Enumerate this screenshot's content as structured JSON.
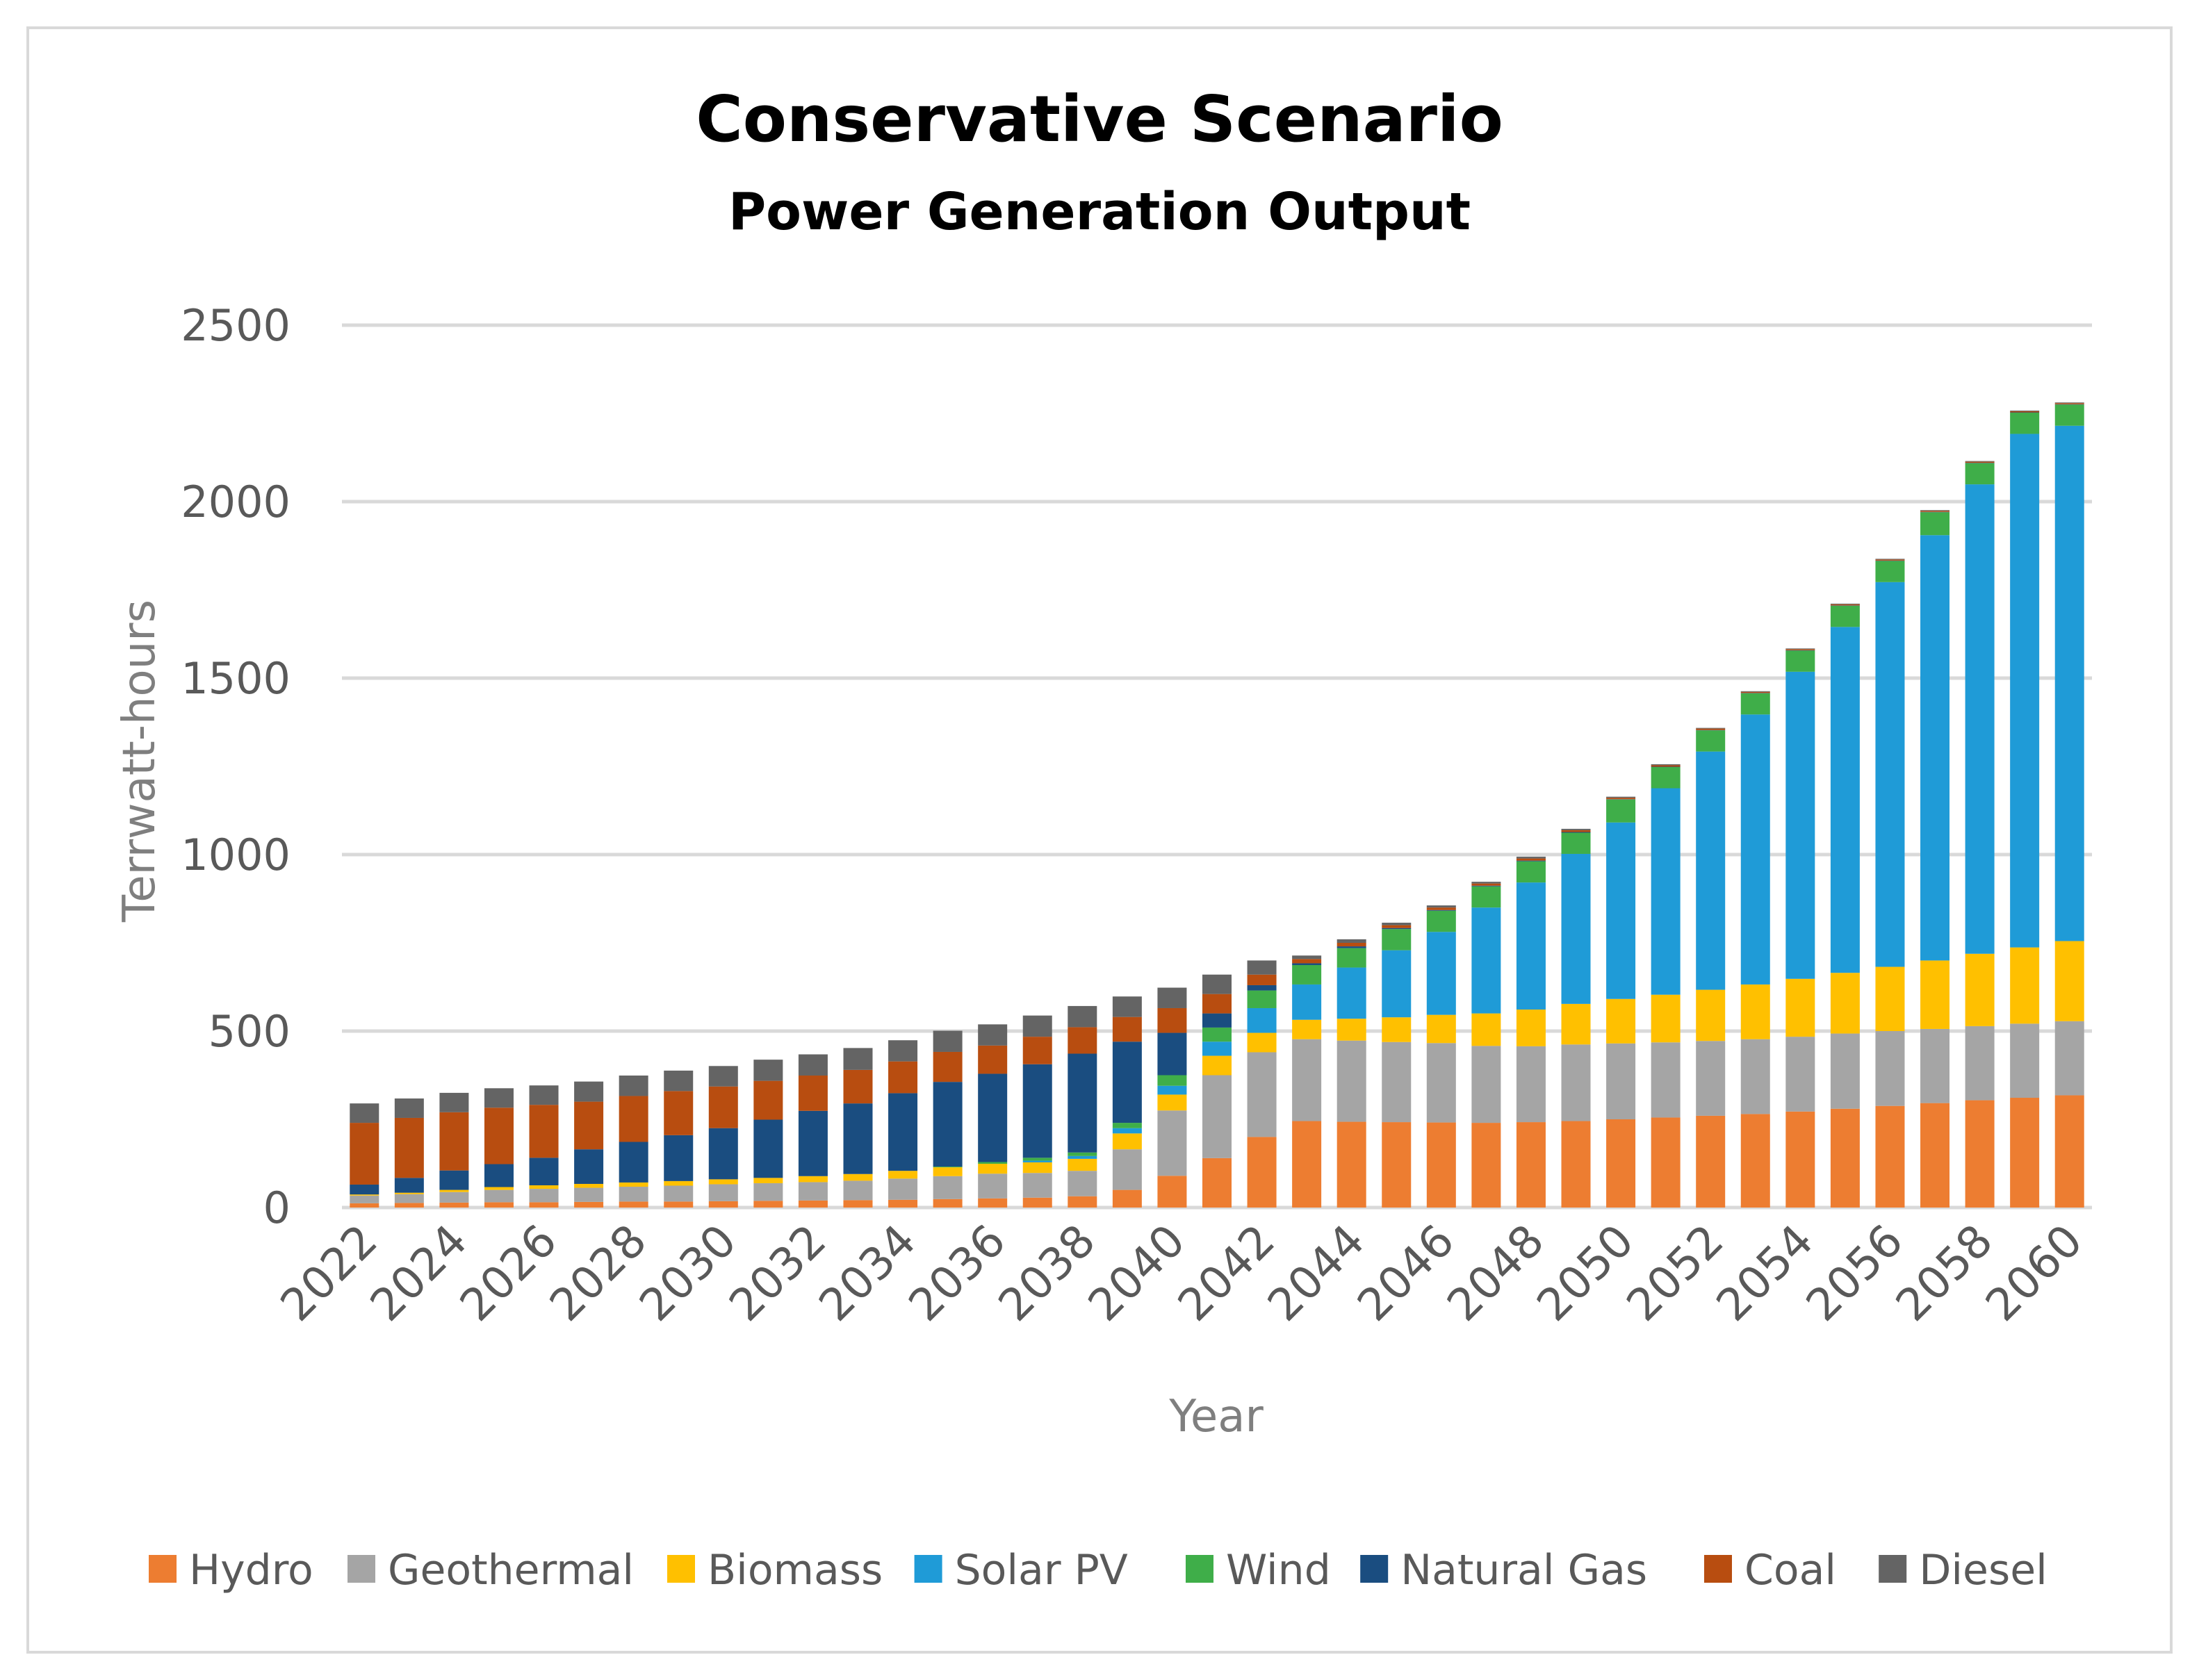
{
  "chart_data": {
    "type": "bar",
    "stacked": true,
    "title": "Conservative Scenario",
    "subtitle": "Power Generation Output",
    "xlabel": "Year",
    "ylabel": "Terrwatt-hours",
    "ylim": [
      0,
      2500
    ],
    "yticks": [
      0,
      500,
      1000,
      1500,
      2000,
      2500
    ],
    "grid": true,
    "legend_position": "bottom",
    "categories": [
      "2022",
      "2023",
      "2024",
      "2025",
      "2026",
      "2027",
      "2028",
      "2029",
      "2030",
      "2031",
      "2032",
      "2033",
      "2034",
      "2035",
      "2036",
      "2037",
      "2038",
      "2039",
      "2040",
      "2041",
      "2042",
      "2043",
      "2044",
      "2045",
      "2046",
      "2047",
      "2048",
      "2049",
      "2050",
      "2051",
      "2052",
      "2053",
      "2054",
      "2055",
      "2056",
      "2057",
      "2058",
      "2059",
      "2060"
    ],
    "xtick_labels": [
      "2022",
      "2024",
      "2026",
      "2028",
      "2030",
      "2032",
      "2034",
      "2036",
      "2038",
      "2040",
      "2042",
      "2044",
      "2046",
      "2048",
      "2050",
      "2052",
      "2054",
      "2056",
      "2058",
      "2060"
    ],
    "series": [
      {
        "name": "Hydro",
        "color": "#ED7D31",
        "values": [
          12,
          13,
          14,
          15,
          15,
          16,
          17,
          17,
          18,
          19,
          20,
          21,
          22,
          24,
          26,
          28,
          32,
          50,
          90,
          140,
          200,
          245,
          243,
          242,
          241,
          240,
          242,
          245,
          250,
          255,
          260,
          265,
          272,
          280,
          288,
          296,
          304,
          311,
          318
        ]
      },
      {
        "name": "Geothermal",
        "color": "#A5A5A5",
        "values": [
          22,
          25,
          30,
          35,
          38,
          40,
          42,
          45,
          48,
          50,
          52,
          55,
          60,
          65,
          70,
          70,
          72,
          115,
          185,
          235,
          240,
          232,
          230,
          227,
          225,
          218,
          215,
          217,
          215,
          213,
          212,
          212,
          212,
          213,
          212,
          210,
          210,
          210,
          210
        ]
      },
      {
        "name": "Biomass",
        "color": "#FFC000",
        "values": [
          3,
          4,
          6,
          8,
          10,
          11,
          12,
          13,
          14,
          15,
          17,
          19,
          22,
          25,
          28,
          30,
          34,
          45,
          45,
          55,
          55,
          55,
          62,
          70,
          80,
          92,
          104,
          115,
          126,
          135,
          145,
          155,
          164,
          172,
          182,
          194,
          205,
          216,
          227
        ]
      },
      {
        "name": "Solar PV",
        "color": "#1F9BD7",
        "values": [
          0,
          0,
          0,
          0,
          0,
          0,
          0,
          0,
          0,
          0,
          0,
          0,
          0,
          0,
          0,
          5,
          8,
          15,
          25,
          40,
          70,
          100,
          145,
          190,
          235,
          300,
          360,
          425,
          500,
          585,
          675,
          765,
          870,
          980,
          1090,
          1205,
          1330,
          1455,
          1460
        ]
      },
      {
        "name": "Wind",
        "color": "#3FAE49",
        "values": [
          0,
          0,
          0,
          0,
          0,
          0,
          0,
          0,
          0,
          0,
          0,
          0,
          0,
          2,
          5,
          8,
          10,
          15,
          30,
          40,
          50,
          55,
          55,
          60,
          60,
          60,
          60,
          60,
          65,
          60,
          60,
          60,
          60,
          60,
          60,
          65,
          60,
          60,
          60
        ]
      },
      {
        "name": "Natural Gas",
        "color": "#1A4D80",
        "values": [
          28,
          42,
          55,
          65,
          78,
          98,
          115,
          130,
          145,
          165,
          185,
          200,
          220,
          240,
          250,
          265,
          280,
          230,
          120,
          40,
          15,
          5,
          5,
          3,
          2,
          2,
          2,
          2,
          1,
          1,
          1,
          1,
          1,
          1,
          1,
          1,
          1,
          1,
          1
        ]
      },
      {
        "name": "Coal",
        "color": "#B84D10",
        "values": [
          175,
          170,
          165,
          160,
          150,
          135,
          130,
          125,
          118,
          110,
          100,
          95,
          90,
          85,
          80,
          78,
          75,
          70,
          70,
          55,
          30,
          12,
          10,
          8,
          7,
          6,
          6,
          5,
          4,
          4,
          4,
          3,
          3,
          3,
          3,
          3,
          3,
          3,
          3
        ]
      },
      {
        "name": "Diesel",
        "color": "#646464",
        "values": [
          55,
          55,
          55,
          55,
          55,
          57,
          58,
          58,
          58,
          60,
          60,
          62,
          60,
          60,
          60,
          60,
          60,
          58,
          58,
          55,
          40,
          10,
          10,
          7,
          6,
          5,
          5,
          4,
          3,
          3,
          2,
          2,
          2,
          2,
          2,
          2,
          2,
          2,
          2
        ]
      }
    ]
  }
}
